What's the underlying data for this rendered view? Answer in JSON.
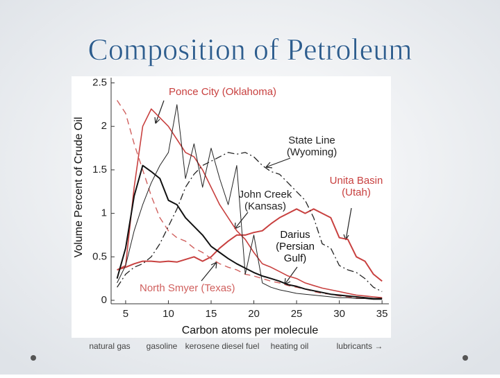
{
  "slide_title": "Composition of Petroleum",
  "chart_data": {
    "type": "line",
    "xlabel": "Carbon atoms per molecule",
    "ylabel": "Volume Percent of Crude Oil",
    "x": [
      4,
      5,
      6,
      7,
      8,
      9,
      10,
      11,
      12,
      13,
      14,
      15,
      16,
      17,
      18,
      19,
      20,
      21,
      22,
      23,
      24,
      25,
      26,
      27,
      28,
      29,
      30,
      31,
      32,
      33,
      34,
      35
    ],
    "xlim": [
      3.3,
      35.8
    ],
    "xticks": [
      5,
      10,
      15,
      20,
      25,
      30,
      35
    ],
    "ylim": [
      -0.04,
      2.56
    ],
    "yticks": [
      0,
      0.5,
      1.0,
      1.5,
      2.0,
      2.5
    ],
    "series": [
      {
        "label_lines": [
          "Ponce City (Oklahoma)"
        ],
        "color": "#c8403f",
        "dash": "none",
        "width": 1.6,
        "values": [
          0.35,
          0.4,
          1.3,
          2.0,
          2.2,
          2.1,
          2.0,
          1.85,
          1.7,
          1.65,
          1.5,
          1.3,
          1.1,
          0.95,
          0.8,
          0.7,
          0.55,
          0.42,
          0.38,
          0.33,
          0.28,
          0.25,
          0.2,
          0.17,
          0.14,
          0.12,
          0.1,
          0.08,
          0.06,
          0.05,
          0.04,
          0.03
        ]
      },
      {
        "label_lines": [
          "Unita Basin",
          "(Utah)"
        ],
        "color": "#c8403f",
        "dash": "none",
        "width": 2,
        "values": [
          0.35,
          0.38,
          0.42,
          0.45,
          0.45,
          0.44,
          0.45,
          0.44,
          0.47,
          0.5,
          0.45,
          0.5,
          0.6,
          0.68,
          0.75,
          0.75,
          0.78,
          0.8,
          0.88,
          0.95,
          1.0,
          1.05,
          1.0,
          1.05,
          1.0,
          0.95,
          0.72,
          0.7,
          0.5,
          0.45,
          0.3,
          0.22
        ]
      },
      {
        "label_lines": [
          "North Smyer (Texas)"
        ],
        "color": "#d0605e",
        "dash": "9,6",
        "width": 1.4,
        "values": [
          2.3,
          2.15,
          1.8,
          1.5,
          1.2,
          0.95,
          0.8,
          0.72,
          0.68,
          0.6,
          0.55,
          0.48,
          0.42,
          0.38,
          0.35,
          0.3,
          0.28,
          0.25,
          0.22,
          0.2,
          0.17,
          0.15,
          0.13,
          0.1,
          0.08,
          0.07,
          0.05,
          0.04,
          0.03,
          0.03,
          0.02,
          0.02
        ]
      },
      {
        "label_lines": [
          "Darius",
          "(Persian",
          "Gulf)"
        ],
        "color": "#111111",
        "dash": "none",
        "width": 2,
        "values": [
          0.25,
          0.6,
          1.2,
          1.55,
          1.48,
          1.4,
          1.15,
          1.1,
          0.95,
          0.85,
          0.75,
          0.62,
          0.55,
          0.48,
          0.42,
          0.37,
          0.32,
          0.28,
          0.25,
          0.22,
          0.18,
          0.16,
          0.13,
          0.11,
          0.09,
          0.07,
          0.06,
          0.05,
          0.04,
          0.03,
          0.02,
          0.02
        ]
      },
      {
        "label_lines": [
          "John Creek",
          "(Kansas)"
        ],
        "color": "#222222",
        "dash": "none",
        "width": 1,
        "values": [
          0.2,
          0.4,
          0.8,
          1.1,
          1.35,
          1.55,
          1.7,
          2.25,
          1.4,
          1.8,
          1.3,
          1.75,
          1.4,
          1.1,
          1.55,
          0.3,
          0.75,
          0.2,
          0.15,
          0.12,
          0.1,
          0.08,
          0.07,
          0.06,
          0.05,
          0.04,
          0.03,
          0.03,
          0.02,
          0.02,
          0.01,
          0.01
        ]
      },
      {
        "label_lines": [
          "State Line",
          "(Wyoming)"
        ],
        "color": "#222222",
        "dash": "10,4,2,4",
        "width": 1.3,
        "values": [
          0.15,
          0.3,
          0.38,
          0.42,
          0.5,
          0.65,
          0.85,
          1.05,
          1.3,
          1.45,
          1.55,
          1.6,
          1.65,
          1.7,
          1.68,
          1.7,
          1.65,
          1.55,
          1.48,
          1.45,
          1.35,
          1.25,
          1.15,
          0.95,
          0.65,
          0.6,
          0.4,
          0.35,
          0.32,
          0.25,
          0.15,
          0.1
        ]
      }
    ]
  },
  "footer_labels": [
    "natural gas",
    "gasoline",
    "kerosene diesel fuel",
    "heating oil",
    "lubricants →"
  ]
}
